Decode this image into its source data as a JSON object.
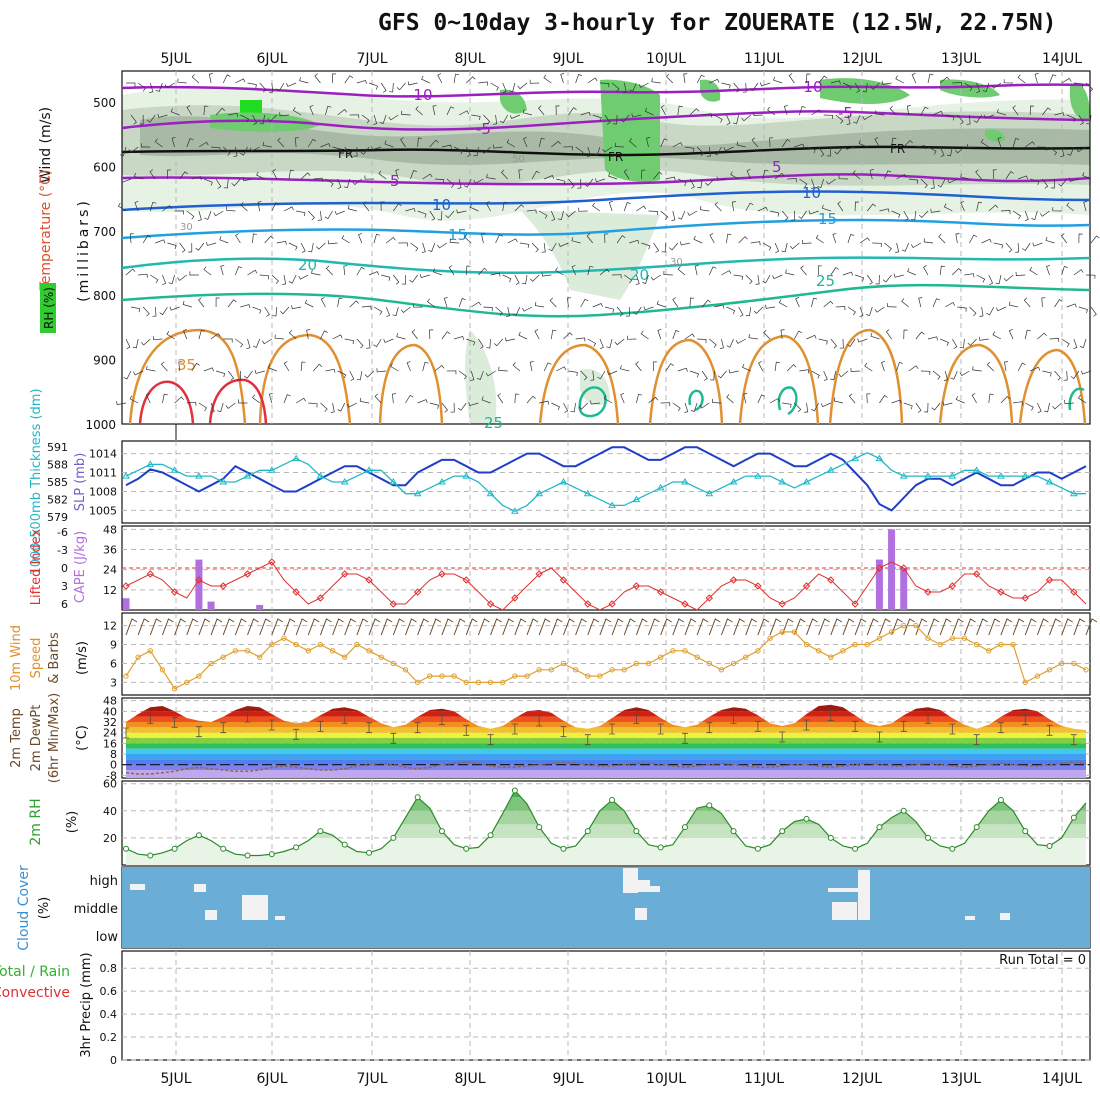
{
  "title": "GFS 0~10day 3-hourly for ZOUERATE (12.5W, 22.75N)",
  "date_labels": [
    "5JUL",
    "6JUL",
    "7JUL",
    "8JUL",
    "9JUL",
    "10JUL",
    "11JUL",
    "12JUL",
    "13JUL",
    "14JUL"
  ],
  "panels": {
    "upper": {
      "ylabel": "(millibars)",
      "ticks": [
        "500",
        "600",
        "700",
        "800",
        "900",
        "1000"
      ],
      "legend": {
        "wind": "Wind (m/s)",
        "temp": "Temperature (°C)",
        "rh": "RH (%)"
      },
      "contour_labels": {
        "t_m10": "-10",
        "t_m5": "-5",
        "fr": "FR",
        "t_5": "5",
        "t_10": "10",
        "t_15": "15",
        "t_20": "20",
        "t_25": "25",
        "t_35": "35",
        "rh_30": "30",
        "rh_50": "50"
      }
    },
    "slp": {
      "left_label": "1000-500mb Thickness (dm)",
      "right_label": "SLP (mb)",
      "left_ticks": [
        "591",
        "588",
        "585",
        "582",
        "579"
      ],
      "right_ticks": [
        "1014",
        "1011",
        "1008",
        "1005"
      ]
    },
    "cape": {
      "left_label": "Lifted Index",
      "right_label": "CAPE (J/kg)",
      "left_ticks": [
        "-6",
        "-3",
        "0",
        "3",
        "6"
      ],
      "right_ticks": [
        "48",
        "36",
        "24",
        "12"
      ]
    },
    "wind": {
      "label1": "10m Wind",
      "label2": "Speed",
      "label3": "& Barbs",
      "unit": "(m/s)",
      "ticks": [
        "12",
        "9",
        "6",
        "3"
      ]
    },
    "temp2m": {
      "label1": "2m Temp",
      "label2": "2m DewPt",
      "label3": "(6hr Min/Max)",
      "unit": "(°C)",
      "ticks": [
        "48",
        "40",
        "32",
        "24",
        "16",
        "8",
        "0",
        "-8"
      ]
    },
    "rh2m": {
      "label": "2m RH",
      "unit": "(%)",
      "ticks": [
        "60",
        "40",
        "20"
      ]
    },
    "cloud": {
      "label": "Cloud Cover",
      "unit": "(%)",
      "levels": [
        "high",
        "middle",
        "low"
      ]
    },
    "precip": {
      "label1": "Total / Rain",
      "label2": "Convective",
      "label3": "3hr Precip (mm)",
      "ticks": [
        "0.8",
        "0.6",
        "0.4",
        "0.2",
        "0"
      ],
      "run_total": "Run Total = 0"
    }
  },
  "colors": {
    "slp": "#1f3fc7",
    "thickness": "#20b8c8",
    "lifted_index": "#e03030",
    "cape": "#b070e0",
    "wind_speed": "#e0a030",
    "barbs": "#6a4a2a",
    "rh_fill": "#6cc06c",
    "cloud_bg": "#6aaed8",
    "temp_purple": "#9a20c0",
    "temp_blue": "#2060d0"
  },
  "chart_data": {
    "type": "line",
    "x_unit": "3-hourly forecast steps starting 4JUL 12Z",
    "x_steps": 80,
    "series": [
      {
        "name": "SLP (mb)",
        "values": [
          1009,
          1010,
          1011.5,
          1011,
          1010,
          1009,
          1008,
          1009,
          1010,
          1012,
          1011,
          1010,
          1009,
          1008,
          1008,
          1009,
          1010,
          1011,
          1012,
          1012,
          1011,
          1010,
          1009,
          1009,
          1011,
          1012,
          1013,
          1013,
          1012,
          1011,
          1011,
          1012,
          1013,
          1014,
          1014,
          1013,
          1012,
          1012,
          1013,
          1014,
          1015,
          1015,
          1014,
          1013,
          1013,
          1014,
          1015,
          1015,
          1014,
          1013,
          1012,
          1013,
          1014,
          1014,
          1013,
          1012,
          1012,
          1013,
          1014,
          1013,
          1011,
          1009,
          1006,
          1005,
          1007,
          1009,
          1010,
          1010,
          1009,
          1010,
          1011,
          1010,
          1009,
          1009,
          1010,
          1011,
          1011,
          1010,
          1011,
          1012
        ]
      },
      {
        "name": "1000-500mb Thickness (dm)",
        "values": [
          586,
          587,
          588,
          588,
          587,
          586,
          586,
          586,
          585,
          585,
          586,
          587,
          587,
          588,
          589,
          588,
          586,
          585,
          585,
          586,
          587,
          587,
          585,
          583,
          583,
          584,
          585,
          586,
          586,
          585,
          583,
          581,
          580,
          581,
          583,
          584,
          585,
          584,
          583,
          582,
          581,
          581,
          582,
          583,
          584,
          585,
          585,
          584,
          583,
          584,
          585,
          586,
          586,
          586,
          585,
          584,
          585,
          586,
          587,
          588,
          589,
          590,
          589,
          587,
          586,
          586,
          586,
          586,
          586,
          587,
          587,
          586,
          586,
          586,
          586,
          586,
          585,
          584,
          583,
          583
        ]
      },
      {
        "name": "Lifted Index",
        "values": [
          3,
          2,
          1,
          2,
          4,
          5,
          2,
          3,
          3,
          2,
          1,
          0,
          -1,
          2,
          4,
          6,
          5,
          3,
          1,
          1,
          2,
          4,
          6,
          6,
          4,
          2,
          1,
          1,
          2,
          4,
          6,
          7,
          5,
          3,
          1,
          0,
          2,
          4,
          6,
          7,
          6,
          4,
          3,
          3,
          4,
          5,
          6,
          7,
          5,
          3,
          2,
          2,
          3,
          5,
          6,
          5,
          3,
          1,
          2,
          4,
          6,
          3,
          0,
          -1,
          0,
          3,
          4,
          4,
          3,
          1,
          1,
          3,
          4,
          5,
          5,
          4,
          2,
          2,
          4,
          6
        ]
      },
      {
        "name": "CAPE (J/kg)",
        "values": [
          7,
          0,
          0,
          0,
          0,
          0,
          30,
          5,
          0,
          0,
          0,
          3,
          0,
          0,
          0,
          0,
          0,
          0,
          0,
          0,
          0,
          0,
          0,
          0,
          0,
          0,
          0,
          0,
          0,
          0,
          0,
          0,
          0,
          0,
          0,
          0,
          0,
          0,
          0,
          0,
          0,
          0,
          0,
          0,
          0,
          0,
          0,
          0,
          0,
          0,
          0,
          0,
          0,
          0,
          0,
          0,
          0,
          0,
          0,
          0,
          0,
          0,
          30,
          48,
          25,
          0,
          0,
          0,
          0,
          0,
          0,
          0,
          0,
          0,
          0,
          0,
          0,
          0,
          0,
          0
        ]
      },
      {
        "name": "10m Wind Speed (m/s)",
        "values": [
          4,
          7,
          8,
          5,
          2,
          3,
          4,
          6,
          7,
          8,
          8,
          7,
          9,
          10,
          9,
          8,
          9,
          8,
          7,
          9,
          8,
          7,
          6,
          5,
          3,
          4,
          4,
          4,
          3,
          3,
          3,
          3,
          4,
          4,
          5,
          5,
          6,
          5,
          4,
          4,
          5,
          5,
          6,
          6,
          7,
          8,
          8,
          7,
          6,
          5,
          6,
          7,
          8,
          10,
          11,
          11,
          9,
          8,
          7,
          8,
          9,
          9,
          10,
          11,
          12,
          12,
          10,
          9,
          10,
          10,
          9,
          8,
          9,
          9,
          3,
          4,
          5,
          6,
          6,
          5
        ]
      },
      {
        "name": "2m Temp (°C)",
        "values": [
          32,
          38,
          43,
          44,
          40,
          35,
          33,
          32,
          36,
          41,
          44,
          43,
          38,
          33,
          31,
          32,
          37,
          42,
          43,
          41,
          36,
          31,
          28,
          30,
          36,
          41,
          42,
          40,
          34,
          29,
          27,
          29,
          35,
          40,
          41,
          39,
          33,
          28,
          27,
          29,
          35,
          41,
          43,
          41,
          35,
          30,
          28,
          30,
          36,
          41,
          43,
          42,
          37,
          31,
          29,
          31,
          38,
          44,
          45,
          43,
          37,
          31,
          29,
          31,
          37,
          42,
          43,
          41,
          35,
          30,
          27,
          30,
          36,
          41,
          42,
          40,
          34,
          29,
          27,
          26
        ]
      },
      {
        "name": "2m DewPt (°C)",
        "values": [
          -6,
          -7,
          -7,
          -6,
          -5,
          -3,
          -2,
          -3,
          -4,
          -5,
          -5,
          -4,
          -2,
          -1,
          -2,
          -3,
          -4,
          -4,
          -3,
          -1,
          0,
          1,
          0,
          -2,
          -3,
          -2,
          0,
          1,
          2,
          1,
          -1,
          -2,
          -2,
          -1,
          0,
          1,
          2,
          1,
          0,
          -1,
          -1,
          0,
          1,
          1,
          0,
          -1,
          -2,
          -1,
          0,
          1,
          0,
          -1,
          -2,
          -2,
          -1,
          0,
          0,
          -1,
          -2,
          -1,
          0,
          1,
          0,
          -1,
          -1,
          0,
          1,
          0,
          -1,
          -2,
          -1,
          0,
          1,
          0,
          -1,
          -1,
          0,
          1,
          2,
          1
        ]
      },
      {
        "name": "2m RH (%)",
        "values": [
          12,
          8,
          7,
          9,
          12,
          18,
          22,
          18,
          12,
          8,
          7,
          7,
          8,
          10,
          13,
          18,
          25,
          22,
          15,
          10,
          9,
          12,
          20,
          35,
          50,
          42,
          25,
          15,
          12,
          13,
          22,
          38,
          55,
          45,
          28,
          16,
          12,
          14,
          25,
          40,
          48,
          40,
          25,
          15,
          13,
          15,
          28,
          42,
          44,
          38,
          25,
          14,
          12,
          15,
          25,
          32,
          34,
          30,
          20,
          14,
          12,
          16,
          28,
          35,
          40,
          32,
          20,
          14,
          12,
          16,
          28,
          40,
          48,
          40,
          25,
          15,
          14,
          20,
          35,
          46
        ]
      }
    ]
  }
}
